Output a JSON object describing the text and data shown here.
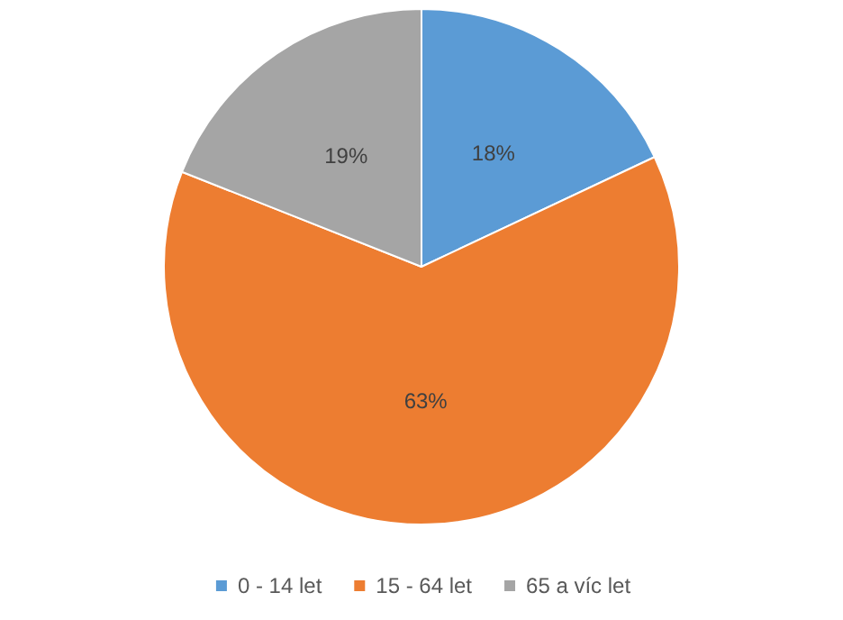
{
  "chart_data": {
    "type": "pie",
    "categories": [
      "0 - 14 let",
      "15 - 64 let",
      "65 a víc let"
    ],
    "values": [
      18,
      63,
      19
    ],
    "value_labels": [
      "18%",
      "63%",
      "19%"
    ],
    "colors": [
      "#5b9bd5",
      "#ed7d31",
      "#a5a5a5"
    ],
    "legend": "bottom"
  }
}
